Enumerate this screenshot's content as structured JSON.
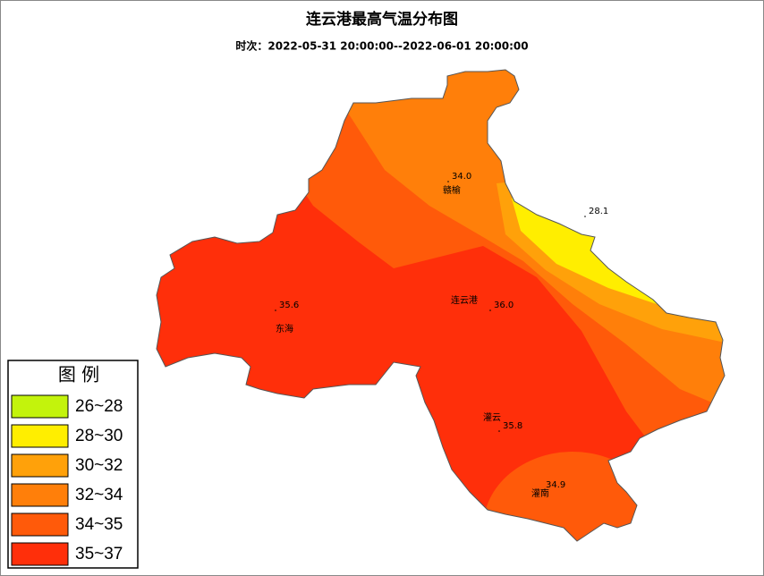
{
  "title": "连云港最高气温分布图",
  "subtitle": "时次：2022-05-31 20:00:00--2022-06-01 20:00:00",
  "legend": {
    "title": "图 例",
    "items": [
      {
        "label": "26~28",
        "color": "#c3f30c"
      },
      {
        "label": "28~30",
        "color": "#ffee00"
      },
      {
        "label": "30~32",
        "color": "#ffa10a"
      },
      {
        "label": "32~34",
        "color": "#ff7f0a"
      },
      {
        "label": "34~35",
        "color": "#ff5a0a"
      },
      {
        "label": "35~37",
        "color": "#ff2f0a"
      }
    ]
  },
  "stations": [
    {
      "name": "赣榆",
      "value": "34.0"
    },
    {
      "name": "",
      "value": "28.1"
    },
    {
      "name": "东海",
      "value": "35.6"
    },
    {
      "name": "连云港",
      "value": "36.0"
    },
    {
      "name": "灌云",
      "value": "35.8"
    },
    {
      "name": "灌南",
      "value": "34.9"
    }
  ]
}
